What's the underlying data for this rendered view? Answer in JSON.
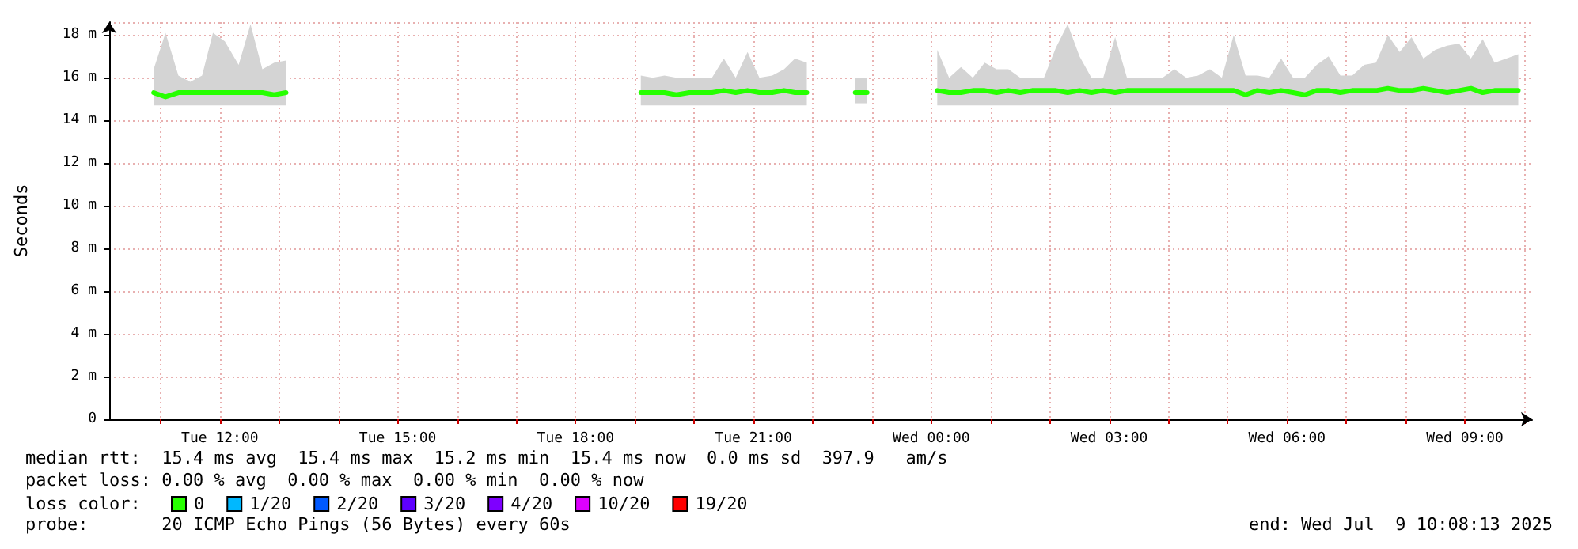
{
  "chart_data": {
    "type": "line",
    "ylabel": "Seconds",
    "xlim": [
      "2025-07-08T10:08",
      "2025-07-09T10:08"
    ],
    "ylim": [
      0,
      18.6
    ],
    "xticks": [
      {
        "value": "2025-07-08T11:00",
        "label": null
      },
      {
        "value": "2025-07-08T12:00",
        "label": "Tue 12:00"
      },
      {
        "value": "2025-07-08T13:00",
        "label": null
      },
      {
        "value": "2025-07-08T14:00",
        "label": null
      },
      {
        "value": "2025-07-08T15:00",
        "label": "Tue 15:00"
      },
      {
        "value": "2025-07-08T16:00",
        "label": null
      },
      {
        "value": "2025-07-08T17:00",
        "label": null
      },
      {
        "value": "2025-07-08T18:00",
        "label": "Tue 18:00"
      },
      {
        "value": "2025-07-08T19:00",
        "label": null
      },
      {
        "value": "2025-07-08T20:00",
        "label": null
      },
      {
        "value": "2025-07-08T21:00",
        "label": "Tue 21:00"
      },
      {
        "value": "2025-07-08T22:00",
        "label": null
      },
      {
        "value": "2025-07-08T23:00",
        "label": null
      },
      {
        "value": "2025-07-09T00:00",
        "label": "Wed 00:00"
      },
      {
        "value": "2025-07-09T01:00",
        "label": null
      },
      {
        "value": "2025-07-09T02:00",
        "label": null
      },
      {
        "value": "2025-07-09T03:00",
        "label": "Wed 03:00"
      },
      {
        "value": "2025-07-09T04:00",
        "label": null
      },
      {
        "value": "2025-07-09T05:00",
        "label": null
      },
      {
        "value": "2025-07-09T06:00",
        "label": "Wed 06:00"
      },
      {
        "value": "2025-07-09T07:00",
        "label": null
      },
      {
        "value": "2025-07-09T08:00",
        "label": null
      },
      {
        "value": "2025-07-09T09:00",
        "label": "Wed 09:00"
      },
      {
        "value": "2025-07-09T10:00",
        "label": null
      }
    ],
    "yticks": [
      0,
      {
        "value": 2,
        "label": "2 m"
      },
      {
        "value": 4,
        "label": "4 m"
      },
      {
        "value": 6,
        "label": "6 m"
      },
      {
        "value": 8,
        "label": "8 m"
      },
      {
        "value": 10,
        "label": "10 m"
      },
      {
        "value": 12,
        "label": "12 m"
      },
      {
        "value": 14,
        "label": "14 m"
      },
      {
        "value": 16,
        "label": "16 m"
      },
      {
        "value": 18,
        "label": "18 m"
      }
    ],
    "grid": true,
    "legend": "bottom left",
    "legend_title": "loss color:",
    "marker": "none",
    "line_style": "solid",
    "annotations": [
      "median rtt:  15.4 ms avg  15.4 ms max  15.2 ms min  15.4 ms now  0.0 ms sd  397.9   am/s",
      "packet loss: 0.00 % avg  0.00 % max  0.00 % min  0.00 % now",
      "probe:       20 ICMP Echo Pings (56 Bytes) every 60s",
      "end: Wed Jul  9 10:08:13 2025"
    ],
    "series": [
      {
        "name": "0",
        "color": "#26ff00",
        "x": [
          "2025-07-08T10:53",
          "2025-07-08T11:05",
          "2025-07-08T11:18",
          "2025-07-08T11:30",
          "2025-07-08T11:42",
          "2025-07-08T11:53",
          "2025-07-08T12:05",
          "2025-07-08T12:19",
          "2025-07-08T12:31",
          "2025-07-08T12:43",
          "2025-07-08T12:55",
          "2025-07-08T13:07",
          "2025-07-08T16:00",
          "2025-07-08T19:06",
          "2025-07-08T19:18",
          "2025-07-08T19:30",
          "2025-07-08T19:42",
          "2025-07-08T19:55",
          "2025-07-08T20:07",
          "2025-07-08T20:18",
          "2025-07-08T20:30",
          "2025-07-08T20:42",
          "2025-07-08T20:54",
          "2025-07-08T21:06",
          "2025-07-08T21:19",
          "2025-07-08T21:31",
          "2025-07-08T21:42",
          "2025-07-08T21:54",
          "2025-07-08T22:18",
          "2025-07-08T22:43",
          "2025-07-08T22:55",
          "2025-07-08T23:30",
          "2025-07-09T00:06",
          "2025-07-09T00:18",
          "2025-07-09T00:30",
          "2025-07-09T00:42",
          "2025-07-09T00:54",
          "2025-07-09T01:06",
          "2025-07-09T01:18",
          "2025-07-09T01:30",
          "2025-07-09T01:42",
          "2025-07-09T01:54",
          "2025-07-09T02:06",
          "2025-07-09T02:18",
          "2025-07-09T02:30",
          "2025-07-09T02:42",
          "2025-07-09T02:54",
          "2025-07-09T03:06",
          "2025-07-09T03:18",
          "2025-07-09T03:30",
          "2025-07-09T03:42",
          "2025-07-09T03:54",
          "2025-07-09T04:06",
          "2025-07-09T04:18",
          "2025-07-09T04:30",
          "2025-07-09T04:42",
          "2025-07-09T04:54",
          "2025-07-09T05:06",
          "2025-07-09T05:18",
          "2025-07-09T05:30",
          "2025-07-09T05:42",
          "2025-07-09T05:54",
          "2025-07-09T06:06",
          "2025-07-09T06:18",
          "2025-07-09T06:30",
          "2025-07-09T06:42",
          "2025-07-09T06:54",
          "2025-07-09T07:06",
          "2025-07-09T07:18",
          "2025-07-09T07:30",
          "2025-07-09T07:42",
          "2025-07-09T07:54",
          "2025-07-09T08:06",
          "2025-07-09T08:18",
          "2025-07-09T08:30",
          "2025-07-09T08:42",
          "2025-07-09T08:54",
          "2025-07-09T09:06",
          "2025-07-09T09:18",
          "2025-07-09T09:30",
          "2025-07-09T09:42",
          "2025-07-09T09:54"
        ],
        "values": [
          15.3,
          15.1,
          15.3,
          15.3,
          15.3,
          15.3,
          15.3,
          15.3,
          15.3,
          15.3,
          15.2,
          15.3,
          null,
          15.3,
          15.3,
          15.3,
          15.2,
          15.3,
          15.3,
          15.3,
          15.4,
          15.3,
          15.4,
          15.3,
          15.3,
          15.4,
          15.3,
          15.3,
          null,
          15.3,
          15.3,
          null,
          15.4,
          15.3,
          15.3,
          15.4,
          15.4,
          15.3,
          15.4,
          15.3,
          15.4,
          15.4,
          15.4,
          15.3,
          15.4,
          15.3,
          15.4,
          15.3,
          15.4,
          15.4,
          15.4,
          15.4,
          15.4,
          15.4,
          15.4,
          15.4,
          15.4,
          15.4,
          15.2,
          15.4,
          15.3,
          15.4,
          15.3,
          15.2,
          15.4,
          15.4,
          15.3,
          15.4,
          15.4,
          15.4,
          15.5,
          15.4,
          15.4,
          15.5,
          15.4,
          15.3,
          15.4,
          15.5,
          15.3,
          15.4,
          15.4,
          15.4
        ],
        "lower": [
          14.7,
          14.7,
          14.7,
          14.7,
          14.7,
          14.7,
          14.7,
          14.7,
          14.7,
          14.7,
          14.7,
          14.7,
          null,
          14.7,
          14.7,
          14.7,
          14.7,
          14.7,
          14.7,
          14.7,
          14.7,
          14.7,
          14.7,
          14.7,
          14.7,
          14.7,
          14.7,
          14.7,
          null,
          14.8,
          14.8,
          null,
          14.7,
          14.7,
          14.7,
          14.7,
          14.7,
          14.7,
          14.7,
          14.7,
          14.7,
          14.7,
          14.7,
          14.7,
          14.7,
          14.7,
          14.7,
          14.7,
          14.7,
          14.7,
          14.7,
          14.7,
          14.7,
          14.7,
          14.7,
          14.7,
          14.7,
          14.7,
          14.7,
          14.7,
          14.7,
          14.7,
          14.7,
          14.7,
          14.7,
          14.7,
          14.7,
          14.7,
          14.7,
          14.7,
          14.7,
          14.7,
          14.7,
          14.7,
          14.7,
          14.7,
          14.7,
          14.7,
          14.7,
          14.7,
          14.7,
          14.7
        ],
        "upper": [
          16.4,
          18.1,
          16.1,
          15.8,
          16.1,
          18.1,
          17.7,
          16.6,
          18.5,
          16.4,
          16.7,
          16.8,
          null,
          16.1,
          16.0,
          16.1,
          16.0,
          16.0,
          16.0,
          16.0,
          16.9,
          16.0,
          17.2,
          16.0,
          16.1,
          16.4,
          16.9,
          16.7,
          null,
          16.0,
          16.0,
          null,
          17.3,
          16.0,
          16.5,
          16.0,
          16.7,
          16.4,
          16.4,
          16.0,
          16.0,
          16.0,
          17.4,
          18.5,
          17.0,
          16.0,
          16.0,
          17.9,
          16.0,
          16.0,
          16.0,
          16.0,
          16.4,
          16.0,
          16.1,
          16.4,
          16.0,
          18.0,
          16.1,
          16.1,
          16.0,
          16.9,
          16.0,
          16.0,
          16.6,
          17.0,
          16.1,
          16.1,
          16.6,
          16.7,
          18.0,
          17.2,
          17.9,
          16.9,
          17.3,
          17.5,
          17.6,
          16.9,
          17.8,
          16.7,
          16.9,
          17.1
        ]
      },
      {
        "name": "1/20",
        "color": "#00b8ff"
      },
      {
        "name": "2/20",
        "color": "#0059ff"
      },
      {
        "name": "3/20",
        "color": "#5e00ff"
      },
      {
        "name": "4/20",
        "color": "#7e00ff"
      },
      {
        "name": "10/20",
        "color": "#dd00ff"
      },
      {
        "name": "19/20",
        "color": "#ff0000"
      }
    ]
  }
}
